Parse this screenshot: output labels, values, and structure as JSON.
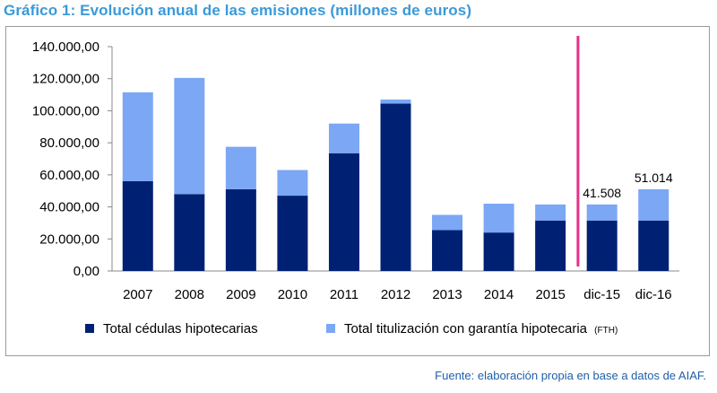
{
  "chart_data": {
    "type": "bar",
    "stacked": true,
    "title": "Gráfico 1: Evolución anual de las emisiones  (millones de euros)",
    "categories": [
      "2007",
      "2008",
      "2009",
      "2010",
      "2011",
      "2012",
      "2013",
      "2014",
      "2015",
      "dic-15",
      "dic-16"
    ],
    "series": [
      {
        "name": "Total cédulas hipotecarias",
        "color": "#002173",
        "values": [
          56000,
          48000,
          51000,
          47000,
          73500,
          104500,
          25500,
          24000,
          31500,
          31500,
          31500
        ]
      },
      {
        "name": "Total titulización con garantía hipotecaria",
        "name_suffix": "(FTH)",
        "color": "#7ba7f5",
        "values": [
          55500,
          72500,
          26500,
          16000,
          18500,
          2500,
          9500,
          18000,
          10000,
          10008,
          19514
        ]
      }
    ],
    "data_labels": [
      {
        "category": "dic-15",
        "text": "41.508"
      },
      {
        "category": "dic-16",
        "text": "51.014"
      }
    ],
    "ylim": [
      0,
      140000
    ],
    "y_ticks": [
      "0,00",
      "20.000,00",
      "40.000,00",
      "60.000,00",
      "80.000,00",
      "100.000,00",
      "120.000,00",
      "140.000,00"
    ],
    "y_tick_step": 20000,
    "grid": false,
    "legend": "bottom",
    "separator_after_category": "2015",
    "separator_color": "#e8308a"
  },
  "source": "Fuente: elaboración propia en base a datos de AIAF."
}
